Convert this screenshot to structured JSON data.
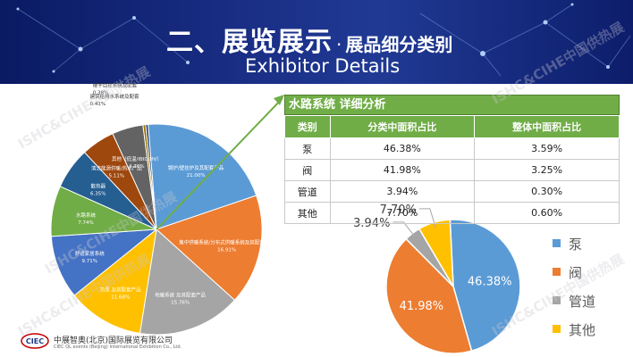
{
  "header": {
    "title": "二、展览展示",
    "dot": "·",
    "subtitle": "展品细分类别",
    "english_title": "Exhibitor Details"
  },
  "watermark": "ISHC&CIHE中国供热展",
  "detail_panel": {
    "heading": "水路系统 详细分析",
    "columns": [
      "类别",
      "分类中面积占比",
      "整体中面积占比"
    ],
    "rows": [
      [
        "泵",
        "46.38%",
        "3.59%"
      ],
      [
        "阀",
        "41.98%",
        "3.25%"
      ],
      [
        "管道",
        "3.94%",
        "0.30%"
      ],
      [
        "其他",
        "7.70%",
        "0.60%"
      ]
    ]
  },
  "footer": {
    "company_cn": "中展智奥(北京)国际展览有限公司",
    "company_en": "CIEC QL events (Beijing) International Exhibition Co., Ltd.",
    "logo_text": "CIEC"
  },
  "colors": {
    "accent_green": "#70ad47",
    "arrow_green": "#70ad47"
  },
  "chart_data": [
    {
      "type": "pie",
      "title": "",
      "labels_inside": true,
      "slices": [
        {
          "label": "锅炉/壁挂炉及其配套产品",
          "value": 21.0,
          "display": "21.00%",
          "color": "#5b9bd5"
        },
        {
          "label": "集中供暖系统/分布式供暖系统及其配套产品",
          "value": 16.91,
          "display": "16.91%",
          "color": "#ed7d31"
        },
        {
          "label": "地暖系统 及其配套产品",
          "value": 15.76,
          "display": "15.76%",
          "color": "#a5a5a5"
        },
        {
          "label": "热泵 及其配套产品",
          "value": 11.68,
          "display": "11.68%",
          "color": "#ffc000"
        },
        {
          "label": "舒适家居系统",
          "value": 9.71,
          "display": "9.71%",
          "color": "#4472c4"
        },
        {
          "label": "水路系统",
          "value": 7.74,
          "display": "7.74%",
          "color": "#70ad47"
        },
        {
          "label": "散热器",
          "value": 6.35,
          "display": "6.35%",
          "color": "#255e91"
        },
        {
          "label": "清洁能源供暖/热水产品",
          "value": 5.11,
          "display": "5.11%",
          "color": "#9e480e"
        },
        {
          "label": "其他（低温/IBID/HV）",
          "value": 4.76,
          "display": "4.76%",
          "color": "#636363"
        },
        {
          "label": "建筑给排水系统及配套",
          "value": 0.41,
          "display": "0.41%",
          "color": "#997300"
        },
        {
          "label": "楼宇自控系统及配套",
          "value": 0.38,
          "display": "0.38%",
          "color": "#264478"
        }
      ]
    },
    {
      "type": "pie",
      "title": "",
      "slices": [
        {
          "label": "泵",
          "value": 46.38,
          "display": "46.38%",
          "color": "#5b9bd5"
        },
        {
          "label": "阀",
          "value": 41.98,
          "display": "41.98%",
          "color": "#ed7d31"
        },
        {
          "label": "管道",
          "value": 3.94,
          "display": "3.94%",
          "color": "#a5a5a5"
        },
        {
          "label": "其他",
          "value": 7.7,
          "display": "7.70%",
          "color": "#ffc000"
        }
      ],
      "legend": "right"
    }
  ]
}
